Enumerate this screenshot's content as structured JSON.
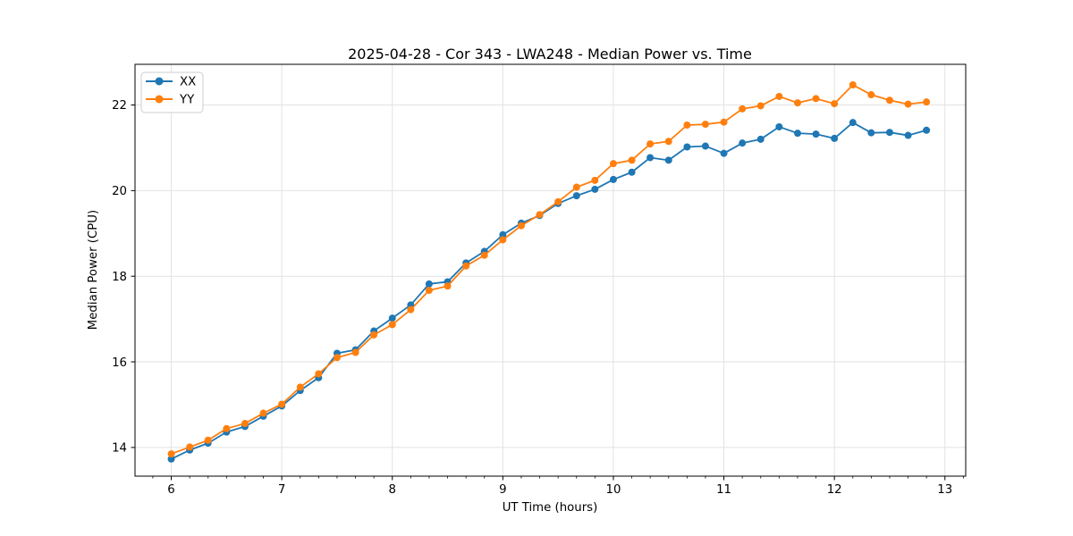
{
  "figure": {
    "background_color": "#ffffff",
    "plot_background_color": "#ffffff",
    "grid_color": "#e2e2e2",
    "spine_color": "#000000",
    "text_color": "#000000"
  },
  "chart_data": {
    "type": "line",
    "title": "2025-04-28 - Cor 343 - LWA248 - Median Power vs. Time",
    "xlabel": "UT Time (hours)",
    "ylabel": "Median Power (CPU)",
    "xlim": [
      5.672,
      13.188
    ],
    "ylim": [
      13.33,
      22.95
    ],
    "x_ticks": [
      6,
      7,
      8,
      9,
      10,
      11,
      12,
      13
    ],
    "x_tick_labels": [
      "6",
      "7",
      "8",
      "9",
      "10",
      "11",
      "12",
      "13"
    ],
    "y_ticks": [
      14,
      16,
      18,
      20,
      22
    ],
    "y_tick_labels": [
      "14",
      "16",
      "18",
      "20",
      "22"
    ],
    "x_minor_step": 0.166667,
    "grid": true,
    "legend": {
      "position": "upper-left",
      "entries": [
        "XX",
        "YY"
      ]
    },
    "x": [
      6.0,
      6.167,
      6.333,
      6.5,
      6.667,
      6.833,
      7.0,
      7.167,
      7.333,
      7.5,
      7.667,
      7.833,
      8.0,
      8.167,
      8.333,
      8.5,
      8.667,
      8.833,
      9.0,
      9.167,
      9.333,
      9.5,
      9.667,
      9.833,
      10.0,
      10.167,
      10.333,
      10.5,
      10.667,
      10.833,
      11.0,
      11.167,
      11.333,
      11.5,
      11.667,
      11.833,
      12.0,
      12.167,
      12.333,
      12.5,
      12.667,
      12.833
    ],
    "series": [
      {
        "name": "XX",
        "color": "#1f77b4",
        "marker": "circle",
        "values": [
          13.73,
          13.94,
          14.1,
          14.36,
          14.49,
          14.73,
          14.97,
          15.33,
          15.63,
          16.2,
          16.28,
          16.72,
          17.02,
          17.33,
          17.82,
          17.87,
          18.31,
          18.58,
          18.97,
          19.24,
          19.42,
          19.7,
          19.88,
          20.03,
          20.26,
          20.43,
          20.77,
          20.71,
          21.02,
          21.04,
          20.87,
          21.11,
          21.2,
          21.49,
          21.34,
          21.32,
          21.22,
          21.59,
          21.35,
          21.36,
          21.29,
          21.41
        ]
      },
      {
        "name": "YY",
        "color": "#ff7f0e",
        "marker": "circle",
        "values": [
          13.85,
          14.01,
          14.17,
          14.44,
          14.56,
          14.8,
          15.01,
          15.41,
          15.72,
          16.1,
          16.22,
          16.63,
          16.87,
          17.22,
          17.67,
          17.77,
          18.24,
          18.49,
          18.85,
          19.18,
          19.44,
          19.74,
          20.08,
          20.24,
          20.63,
          20.71,
          21.09,
          21.15,
          21.53,
          21.55,
          21.6,
          21.91,
          21.98,
          22.2,
          22.05,
          22.15,
          22.03,
          22.47,
          22.24,
          22.11,
          22.02,
          22.07
        ]
      }
    ]
  }
}
